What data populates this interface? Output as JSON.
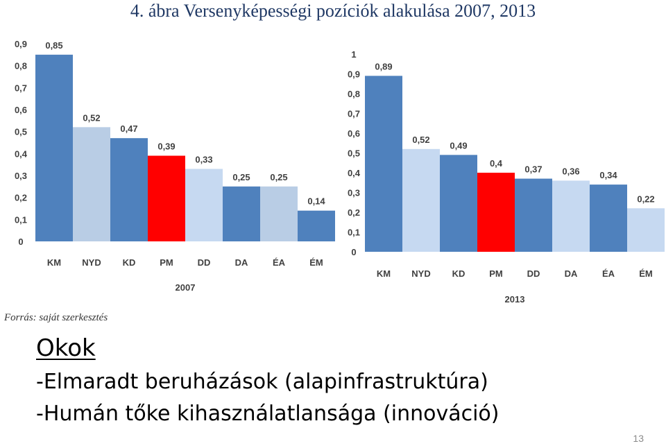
{
  "slide": {
    "title": "4. ábra Versenyképességi pozíciók alakulása 2007, 2013",
    "source": "Forrás: saját szerkesztés",
    "heading": "Okok",
    "reasons": [
      "-Elmaradt beruházások (alapinfrastruktúra)",
      "-Humán tőke kihasználatlansága (innováció)"
    ],
    "page_number": "13"
  },
  "colors": {
    "dark_blue": "#4f81bd",
    "light_blue": "#b9cde5",
    "red": "#ff0000",
    "title_color": "#1f3864"
  },
  "chart_data": [
    {
      "type": "bar",
      "xlabel": "2007",
      "categories": [
        "KM",
        "NYD",
        "KD",
        "PM",
        "DD",
        "DA",
        "ÉA",
        "ÉM"
      ],
      "values": [
        0.85,
        0.52,
        0.47,
        0.39,
        0.33,
        0.25,
        0.25,
        0.14
      ],
      "value_labels": [
        "0,85",
        "0,52",
        "0,47",
        "0,39",
        "0,33",
        "0,25",
        "0,25",
        "0,14"
      ],
      "bar_colors": [
        "#4f81bd",
        "#b9cde5",
        "#4f81bd",
        "#ff0000",
        "#c6d9f1",
        "#4f81bd",
        "#b9cde5",
        "#4f81bd"
      ],
      "ylim": [
        0,
        0.9
      ],
      "yticks": [
        "0",
        "0,1",
        "0,2",
        "0,3",
        "0,4",
        "0,5",
        "0,6",
        "0,7",
        "0,8",
        "0,9"
      ],
      "grid": false,
      "legend": "none"
    },
    {
      "type": "bar",
      "xlabel": "2013",
      "categories": [
        "KM",
        "NYD",
        "KD",
        "PM",
        "DD",
        "DA",
        "ÉA",
        "ÉM"
      ],
      "values": [
        0.89,
        0.52,
        0.49,
        0.4,
        0.37,
        0.36,
        0.34,
        0.22
      ],
      "value_labels": [
        "0,89",
        "0,52",
        "0,49",
        "0,4",
        "0,37",
        "0,36",
        "0,34",
        "0,22"
      ],
      "bar_colors": [
        "#4f81bd",
        "#c6d9f1",
        "#4f81bd",
        "#ff0000",
        "#4f81bd",
        "#c6d9f1",
        "#4f81bd",
        "#c6d9f1"
      ],
      "ylim": [
        0,
        1
      ],
      "yticks": [
        "0",
        "0,1",
        "0,2",
        "0,3",
        "0,4",
        "0,5",
        "0,6",
        "0,7",
        "0,8",
        "0,9",
        "1"
      ],
      "grid": false,
      "legend": "none"
    }
  ]
}
